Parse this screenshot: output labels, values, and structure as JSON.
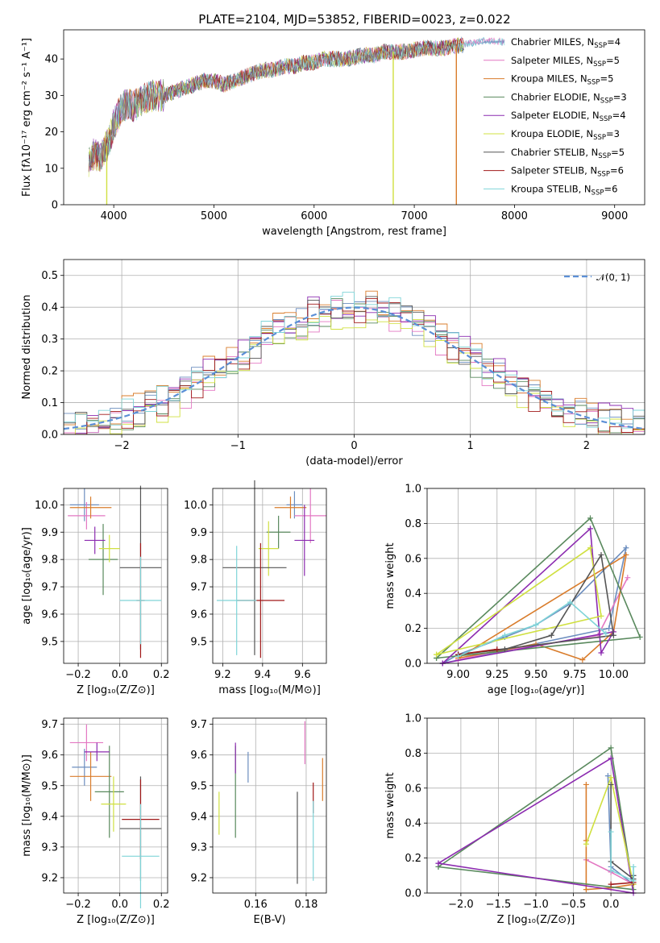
{
  "page_title": "PLATE=2104, MJD=53852, FIBERID=0023, z=0.022",
  "colors": [
    "#6c8ebf",
    "#e377c2",
    "#d97c2b",
    "#59895d",
    "#8c2bb0",
    "#d0e040",
    "#555555",
    "#a01818",
    "#7fd4d8"
  ],
  "chart_data": [
    {
      "type": "line",
      "title": "PLATE=2104, MJD=53852, FIBERID=0023, z=0.022",
      "xlabel": "wavelength [Angstrom, rest frame]",
      "ylabel": "Flux [fλ10⁻¹⁷ erg cm⁻² s⁻¹ A⁻¹]",
      "xlim": [
        3500,
        9300
      ],
      "ylim": [
        0,
        48
      ],
      "xticks": [
        "4000",
        "5000",
        "6000",
        "7000",
        "8000",
        "9000"
      ],
      "yticks": [
        "0",
        "10",
        "20",
        "30",
        "40"
      ],
      "legend_position": "top-right",
      "legend": [
        {
          "label": "Chabrier MILES, N",
          "sub": "SSP",
          "suffix": "=4"
        },
        {
          "label": "Salpeter MILES, N",
          "sub": "SSP",
          "suffix": "=5"
        },
        {
          "label": "Kroupa MILES, N",
          "sub": "SSP",
          "suffix": "=5"
        },
        {
          "label": "Chabrier ELODIE, N",
          "sub": "SSP",
          "suffix": "=3"
        },
        {
          "label": "Salpeter ELODIE, N",
          "sub": "SSP",
          "suffix": "=4"
        },
        {
          "label": "Kroupa ELODIE, N",
          "sub": "SSP",
          "suffix": "=3"
        },
        {
          "label": "Chabrier STELIB, N",
          "sub": "SSP",
          "suffix": "=5"
        },
        {
          "label": "Salpeter STELIB, N",
          "sub": "SSP",
          "suffix": "=6"
        },
        {
          "label": "Kroupa STELIB, N",
          "sub": "SSP",
          "suffix": "=6"
        }
      ],
      "spectrum_x": [
        3750,
        3800,
        3850,
        3900,
        3950,
        4000,
        4050,
        4100,
        4150,
        4200,
        4300,
        4400,
        4500,
        4600,
        4700,
        4800,
        4900,
        5000,
        5100,
        5200,
        5300,
        5400,
        5500,
        5600,
        5700,
        5800,
        5900,
        6000,
        6100,
        6200,
        6300,
        6400,
        6500,
        6600,
        6700,
        6800,
        6900,
        7000,
        7100,
        7200,
        7300,
        7400,
        7500,
        7600,
        7700,
        7800,
        7900,
        8000,
        8100,
        8200,
        8300,
        8400,
        8500,
        8600,
        8700,
        8800,
        8900,
        9000,
        9100
      ],
      "spectrum_y": [
        12,
        14,
        13,
        15,
        17,
        22,
        25,
        27,
        28,
        27,
        29,
        30,
        30,
        31,
        32,
        33,
        34,
        34,
        33,
        34,
        35,
        36,
        37,
        37,
        38,
        38,
        39,
        39,
        40,
        40,
        40,
        40.5,
        41,
        41,
        42,
        42,
        42,
        42.5,
        43,
        43,
        43,
        43.5,
        44,
        44.5,
        45,
        45,
        44.5,
        44,
        43.5,
        43.5,
        43,
        43.5,
        43.5,
        43,
        43,
        42.5,
        42.5,
        42,
        41.5
      ],
      "spectrum_dips": [
        {
          "series": "Kroupa MILES",
          "x": 3930,
          "y": 0
        },
        {
          "series": "Chabrier ELODIE",
          "x": 6790,
          "y": 0
        },
        {
          "series": "Salpeter STELIB",
          "x": 7420,
          "y": 0
        }
      ]
    },
    {
      "type": "line",
      "xlabel": "(data-model)/error",
      "ylabel": "Normed distribution",
      "xlim": [
        -2.5,
        2.5
      ],
      "ylim": [
        0,
        0.55
      ],
      "xticks": [
        "−2",
        "−1",
        "0",
        "1",
        "2"
      ],
      "yticks": [
        "0.0",
        "0.1",
        "0.2",
        "0.3",
        "0.4",
        "0.5"
      ],
      "legend_position": "top-right",
      "legend": [
        "𝒩(0, 1)"
      ],
      "bin_width": 0.1,
      "reference_curve": "N(0,1)",
      "series_seed_offsets": [
        0.01,
        -0.015,
        0.02,
        -0.01,
        0.015,
        -0.02,
        0.005,
        -0.005,
        0.012
      ]
    },
    {
      "type": "scatter",
      "xlabel": "Z [log₁₀(Z/Z⊙)]",
      "ylabel": "age  [log₁₀(age/yr)]",
      "xlim": [
        -0.27,
        0.23
      ],
      "ylim": [
        9.42,
        10.06
      ],
      "xticks": [
        "−0.2",
        "0.0",
        "0.2"
      ],
      "yticks": [
        "9.5",
        "9.6",
        "9.7",
        "9.8",
        "9.9",
        "10.0"
      ],
      "points": [
        {
          "x": -0.17,
          "y": 10.0,
          "xerr": 0.07,
          "yerr": 0.06
        },
        {
          "x": -0.16,
          "y": 9.96,
          "xerr": 0.09,
          "yerr": 0.05
        },
        {
          "x": -0.14,
          "y": 9.99,
          "xerr": 0.1,
          "yerr": 0.04
        },
        {
          "x": -0.08,
          "y": 9.8,
          "xerr": 0.07,
          "yerr": 0.13
        },
        {
          "x": -0.12,
          "y": 9.87,
          "xerr": 0.05,
          "yerr": 0.05
        },
        {
          "x": -0.05,
          "y": 9.84,
          "xerr": 0.05,
          "yerr": 0.05
        },
        {
          "x": 0.1,
          "y": 9.77,
          "xerr": 0.1,
          "yerr": 0.3
        },
        {
          "x": 0.1,
          "y": 9.65,
          "xerr": 0.02,
          "yerr": 0.21
        },
        {
          "x": 0.1,
          "y": 9.65,
          "xerr": 0.1,
          "yerr": 0.16
        }
      ]
    },
    {
      "type": "scatter",
      "xlabel": "mass [log₁₀(M/M⊙)]",
      "ylabel": "",
      "xlim": [
        9.15,
        9.72
      ],
      "ylim": [
        9.42,
        10.06
      ],
      "xticks": [
        "9.2",
        "9.4",
        "9.6"
      ],
      "yticks": [
        "9.5",
        "9.6",
        "9.7",
        "9.8",
        "9.9",
        "10.0"
      ],
      "points": [
        {
          "x": 9.56,
          "y": 10.0,
          "xerr": 0.04,
          "yerr": 0.05
        },
        {
          "x": 9.64,
          "y": 9.96,
          "xerr": 0.08,
          "yerr": 0.1
        },
        {
          "x": 9.54,
          "y": 9.99,
          "xerr": 0.08,
          "yerr": 0.04
        },
        {
          "x": 9.48,
          "y": 9.9,
          "xerr": 0.06,
          "yerr": 0.06
        },
        {
          "x": 9.61,
          "y": 9.87,
          "xerr": 0.05,
          "yerr": 0.13
        },
        {
          "x": 9.43,
          "y": 9.84,
          "xerr": 0.05,
          "yerr": 0.1
        },
        {
          "x": 9.36,
          "y": 9.77,
          "xerr": 0.16,
          "yerr": 0.32
        },
        {
          "x": 9.39,
          "y": 9.65,
          "xerr": 0.12,
          "yerr": 0.21
        },
        {
          "x": 9.27,
          "y": 9.65,
          "xerr": 0.1,
          "yerr": 0.2
        }
      ]
    },
    {
      "type": "line",
      "xlabel": "age  [log₁₀(age/yr)]",
      "ylabel": "mass weight",
      "xlim": [
        8.8,
        10.2
      ],
      "ylim": [
        0,
        1
      ],
      "xticks": [
        "9.00",
        "9.25",
        "9.50",
        "9.75",
        "10.00"
      ],
      "yticks": [
        "0.0",
        "0.2",
        "0.4",
        "0.6",
        "0.8",
        "1.0"
      ],
      "series": [
        {
          "x": [
            8.9,
            9.0,
            9.3,
            9.5,
            9.72,
            10.08,
            9.97,
            8.9
          ],
          "y": [
            0.0,
            0.05,
            0.15,
            0.22,
            0.34,
            0.66,
            0.2,
            0.0
          ]
        },
        {
          "x": [
            9.0,
            9.25,
            9.5,
            9.9,
            10.09
          ],
          "y": [
            0.02,
            0.07,
            0.1,
            0.16,
            0.49
          ]
        },
        {
          "x": [
            9.0,
            9.5,
            9.8,
            10.0,
            10.08,
            9.0
          ],
          "y": [
            0.03,
            0.11,
            0.02,
            0.18,
            0.62,
            0.03
          ]
        },
        {
          "x": [
            8.86,
            9.85,
            10.17,
            8.86
          ],
          "y": [
            0.03,
            0.83,
            0.15,
            0.03
          ]
        },
        {
          "x": [
            8.9,
            9.85,
            9.92,
            10.0,
            8.9
          ],
          "y": [
            0.0,
            0.77,
            0.06,
            0.18,
            0.0
          ]
        },
        {
          "x": [
            8.86,
            9.85,
            9.92,
            8.86
          ],
          "y": [
            0.05,
            0.66,
            0.27,
            0.05
          ]
        },
        {
          "x": [
            9.0,
            9.3,
            9.6,
            9.92,
            10.0,
            9.0
          ],
          "y": [
            0.05,
            0.08,
            0.16,
            0.62,
            0.16,
            0.05
          ]
        },
        {
          "x": [
            9.0,
            9.25
          ],
          "y": [
            0.05,
            0.08
          ]
        },
        {
          "x": [
            9.0,
            9.3,
            9.5,
            9.72,
            9.95
          ],
          "y": [
            0.04,
            0.16,
            0.22,
            0.35,
            0.17
          ]
        }
      ]
    },
    {
      "type": "scatter",
      "xlabel": "Z [log₁₀(Z/Z⊙)]",
      "ylabel": "mass [log₁₀(M/M⊙)]",
      "xlim": [
        -0.27,
        0.23
      ],
      "ylim": [
        9.15,
        9.72
      ],
      "xticks": [
        "−0.2",
        "0.0",
        "0.2"
      ],
      "yticks": [
        "9.2",
        "9.3",
        "9.4",
        "9.5",
        "9.6",
        "9.7"
      ],
      "points": [
        {
          "x": -0.17,
          "y": 9.56,
          "xerr": 0.06,
          "yerr": 0.06
        },
        {
          "x": -0.16,
          "y": 9.64,
          "xerr": 0.08,
          "yerr": 0.06
        },
        {
          "x": -0.14,
          "y": 9.53,
          "xerr": 0.1,
          "yerr": 0.08
        },
        {
          "x": -0.05,
          "y": 9.48,
          "xerr": 0.07,
          "yerr": 0.15
        },
        {
          "x": -0.11,
          "y": 9.61,
          "xerr": 0.06,
          "yerr": 0.03
        },
        {
          "x": -0.03,
          "y": 9.44,
          "xerr": 0.06,
          "yerr": 0.09
        },
        {
          "x": 0.1,
          "y": 9.36,
          "xerr": 0.1,
          "yerr": 0.17
        },
        {
          "x": 0.1,
          "y": 9.39,
          "xerr": 0.09,
          "yerr": 0.13
        },
        {
          "x": 0.1,
          "y": 9.27,
          "xerr": 0.09,
          "yerr": 0.17
        }
      ]
    },
    {
      "type": "scatter",
      "xlabel": "E(B-V)",
      "ylabel": "",
      "xlim": [
        0.143,
        0.188
      ],
      "ylim": [
        9.15,
        9.72
      ],
      "xticks": [
        "0.16",
        "0.18"
      ],
      "yticks": [
        "9.2",
        "9.3",
        "9.4",
        "9.5",
        "9.6",
        "9.7"
      ],
      "points": [
        {
          "x": 0.157,
          "y": 9.56,
          "xerr": 0,
          "yerr": 0.05
        },
        {
          "x": 0.1795,
          "y": 9.64,
          "xerr": 0,
          "yerr": 0.07
        },
        {
          "x": 0.1865,
          "y": 9.52,
          "xerr": 0,
          "yerr": 0.07
        },
        {
          "x": 0.152,
          "y": 9.48,
          "xerr": 0,
          "yerr": 0.15
        },
        {
          "x": 0.152,
          "y": 9.59,
          "xerr": 0,
          "yerr": 0.05
        },
        {
          "x": 0.1455,
          "y": 9.41,
          "xerr": 0,
          "yerr": 0.07
        },
        {
          "x": 0.1765,
          "y": 9.33,
          "xerr": 0,
          "yerr": 0.15
        },
        {
          "x": 0.1828,
          "y": 9.46,
          "xerr": 0,
          "yerr": 0.05
        },
        {
          "x": 0.1828,
          "y": 9.32,
          "xerr": 0,
          "yerr": 0.13
        }
      ]
    },
    {
      "type": "line",
      "xlabel": "Z [log₁₀(Z/Z⊙)]",
      "ylabel": "mass weight",
      "xlim": [
        -2.45,
        0.45
      ],
      "ylim": [
        0,
        1
      ],
      "xticks": [
        "−2.0",
        "−1.5",
        "−1.0",
        "−0.5",
        "0.0"
      ],
      "yticks": [
        "0.0",
        "0.2",
        "0.4",
        "0.6",
        "0.8",
        "1.0"
      ],
      "series": [
        {
          "x": [
            -0.04,
            0.0,
            0.3,
            0.3
          ],
          "y": [
            0.67,
            0.15,
            0.05,
            0.1
          ]
        },
        {
          "x": [
            -0.33,
            0.0,
            0.3
          ],
          "y": [
            0.19,
            0.12,
            0.05
          ]
        },
        {
          "x": [
            -0.33,
            -0.33,
            -0.33,
            0.0,
            0.3
          ],
          "y": [
            0.62,
            0.3,
            0.02,
            0.03,
            0.05
          ]
        },
        {
          "x": [
            -2.3,
            0.0,
            0.3,
            -2.3
          ],
          "y": [
            0.15,
            0.83,
            0.02,
            0.15
          ]
        },
        {
          "x": [
            -2.3,
            0.0,
            0.3,
            -2.3
          ],
          "y": [
            0.17,
            0.77,
            0.0,
            0.17
          ]
        },
        {
          "x": [
            -0.33,
            0.0,
            0.3
          ],
          "y": [
            0.28,
            0.66,
            0.05
          ]
        },
        {
          "x": [
            0.0,
            0.0,
            0.3,
            0.3
          ],
          "y": [
            0.62,
            0.18,
            0.08,
            0.1
          ]
        },
        {
          "x": [
            0.0,
            0.3
          ],
          "y": [
            0.05,
            0.06
          ]
        },
        {
          "x": [
            0.0,
            0.0,
            0.3,
            0.3
          ],
          "y": [
            0.35,
            0.13,
            0.07,
            0.15
          ]
        }
      ]
    }
  ]
}
